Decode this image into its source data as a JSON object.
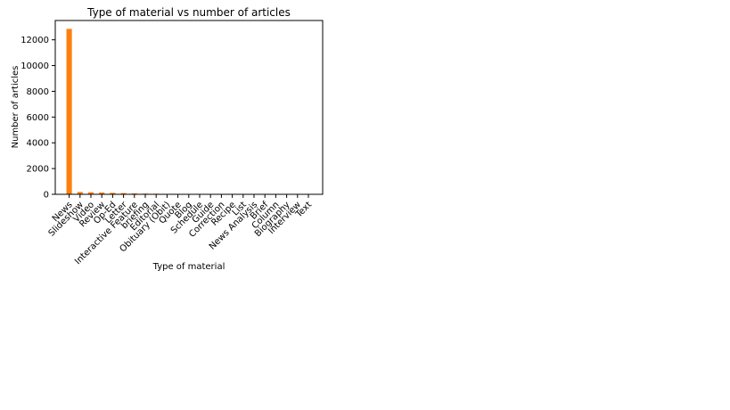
{
  "chart_data": {
    "type": "bar",
    "title": "Type of material vs number of articles",
    "xlabel": "Type of material",
    "ylabel": "Number of articles",
    "ylim": [
      0,
      13500
    ],
    "yticks": [
      0,
      2000,
      4000,
      6000,
      8000,
      10000,
      12000
    ],
    "grid": false,
    "bar_color": "#ff7f0e",
    "categories": [
      "News",
      "Slideshow",
      "Video",
      "Review",
      "Op-Ed",
      "Letter",
      "Interactive Feature",
      "briefing",
      "Editorial",
      "Obituary (Obit)",
      "Quote",
      "Blog",
      "Schedule",
      "Guide",
      "Correction",
      "Recipe",
      "List",
      "News Analysis",
      "Brief",
      "Column",
      "Biography",
      "Interview",
      "Text"
    ],
    "values": [
      12850,
      180,
      160,
      140,
      115,
      95,
      70,
      55,
      45,
      25,
      8,
      6,
      5,
      4,
      3,
      3,
      3,
      2,
      2,
      2,
      1,
      1,
      1
    ]
  }
}
